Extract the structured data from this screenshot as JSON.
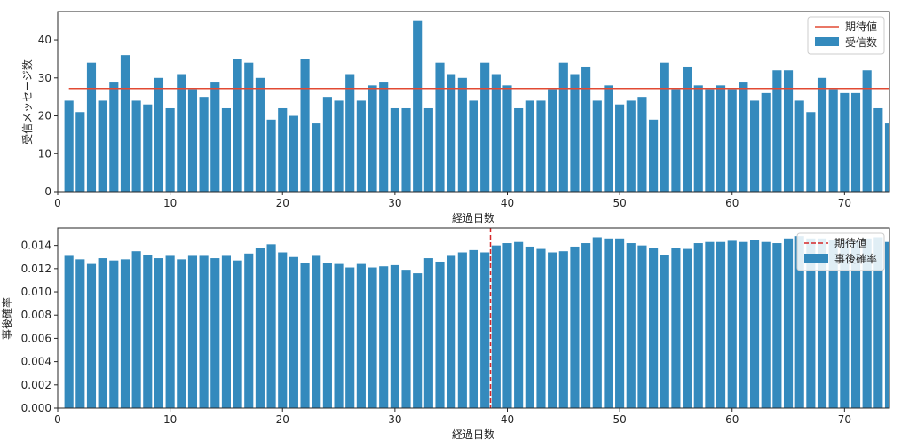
{
  "colors": {
    "bar": "#348ABD",
    "line": "#E24A33",
    "vline": "#d62728"
  },
  "chart_data": [
    {
      "type": "bar",
      "xlabel": "経過日数",
      "ylabel": "受信メッセージ数",
      "xlim": [
        0,
        74
      ],
      "ylim": [
        0,
        47.5
      ],
      "x_ticks": [
        0,
        10,
        20,
        30,
        40,
        50,
        60,
        70
      ],
      "y_ticks": [
        0,
        10,
        20,
        30,
        40
      ],
      "x": [
        1,
        2,
        3,
        4,
        5,
        6,
        7,
        8,
        9,
        10,
        11,
        12,
        13,
        14,
        15,
        16,
        17,
        18,
        19,
        20,
        21,
        22,
        23,
        24,
        25,
        26,
        27,
        28,
        29,
        30,
        31,
        32,
        33,
        34,
        35,
        36,
        37,
        38,
        39,
        40,
        41,
        42,
        43,
        44,
        45,
        46,
        47,
        48,
        49,
        50,
        51,
        52,
        53,
        54,
        55,
        56,
        57,
        58,
        59,
        60,
        61,
        62,
        63,
        64,
        65,
        66,
        67,
        68,
        69,
        70,
        71,
        72,
        73,
        74
      ],
      "series": [
        {
          "name": "受信数",
          "values": [
            24,
            21,
            34,
            24,
            29,
            36,
            24,
            23,
            30,
            22,
            31,
            27,
            25,
            29,
            22,
            35,
            34,
            30,
            19,
            22,
            20,
            35,
            18,
            25,
            24,
            31,
            24,
            28,
            29,
            22,
            22,
            45,
            22,
            34,
            31,
            30,
            24,
            34,
            31,
            28,
            22,
            24,
            24,
            27,
            34,
            31,
            33,
            24,
            28,
            23,
            24,
            25,
            19,
            34,
            27,
            33,
            28,
            27,
            28,
            27,
            29,
            24,
            26,
            32,
            32,
            24,
            21,
            30,
            27,
            26,
            26,
            32,
            22,
            18
          ]
        }
      ],
      "hline": {
        "name": "期待値",
        "value": 27.2
      },
      "legend": {
        "position": "top-right",
        "entries": [
          "期待値",
          "受信数"
        ]
      }
    },
    {
      "type": "bar",
      "xlabel": "経過日数",
      "ylabel": "事後確率",
      "xlim": [
        0,
        74
      ],
      "ylim": [
        0,
        0.0155
      ],
      "x_ticks": [
        0,
        10,
        20,
        30,
        40,
        50,
        60,
        70
      ],
      "y_ticks": [
        "0.000",
        "0.002",
        "0.004",
        "0.006",
        "0.008",
        "0.010",
        "0.012",
        "0.014"
      ],
      "x": [
        1,
        2,
        3,
        4,
        5,
        6,
        7,
        8,
        9,
        10,
        11,
        12,
        13,
        14,
        15,
        16,
        17,
        18,
        19,
        20,
        21,
        22,
        23,
        24,
        25,
        26,
        27,
        28,
        29,
        30,
        31,
        32,
        33,
        34,
        35,
        36,
        37,
        38,
        39,
        40,
        41,
        42,
        43,
        44,
        45,
        46,
        47,
        48,
        49,
        50,
        51,
        52,
        53,
        54,
        55,
        56,
        57,
        58,
        59,
        60,
        61,
        62,
        63,
        64,
        65,
        66,
        67,
        68,
        69,
        70,
        71,
        72,
        73,
        74
      ],
      "series": [
        {
          "name": "事後確率",
          "values": [
            0.0131,
            0.0128,
            0.0124,
            0.0129,
            0.0127,
            0.0128,
            0.0135,
            0.0132,
            0.0129,
            0.0131,
            0.0128,
            0.0131,
            0.0131,
            0.0129,
            0.0131,
            0.0127,
            0.0133,
            0.0138,
            0.0141,
            0.0134,
            0.013,
            0.0125,
            0.0131,
            0.0125,
            0.0124,
            0.0121,
            0.0124,
            0.0121,
            0.0122,
            0.0123,
            0.0119,
            0.0116,
            0.0129,
            0.0126,
            0.0131,
            0.0134,
            0.0136,
            0.0134,
            0.014,
            0.0142,
            0.0143,
            0.0139,
            0.0137,
            0.0134,
            0.0135,
            0.0139,
            0.0142,
            0.0147,
            0.0146,
            0.0146,
            0.0142,
            0.014,
            0.0138,
            0.0132,
            0.0138,
            0.0137,
            0.0142,
            0.0143,
            0.0143,
            0.0144,
            0.0143,
            0.0145,
            0.0143,
            0.0142,
            0.0146,
            0.0148,
            0.0146,
            0.0146,
            0.0145,
            0.0145,
            0.0144,
            0.0146,
            0.0147,
            0.0143
          ]
        }
      ],
      "vline": {
        "name": "期待値",
        "value": 38.5
      },
      "legend": {
        "position": "top-right",
        "entries": [
          "期待値",
          "事後確率"
        ]
      }
    }
  ]
}
